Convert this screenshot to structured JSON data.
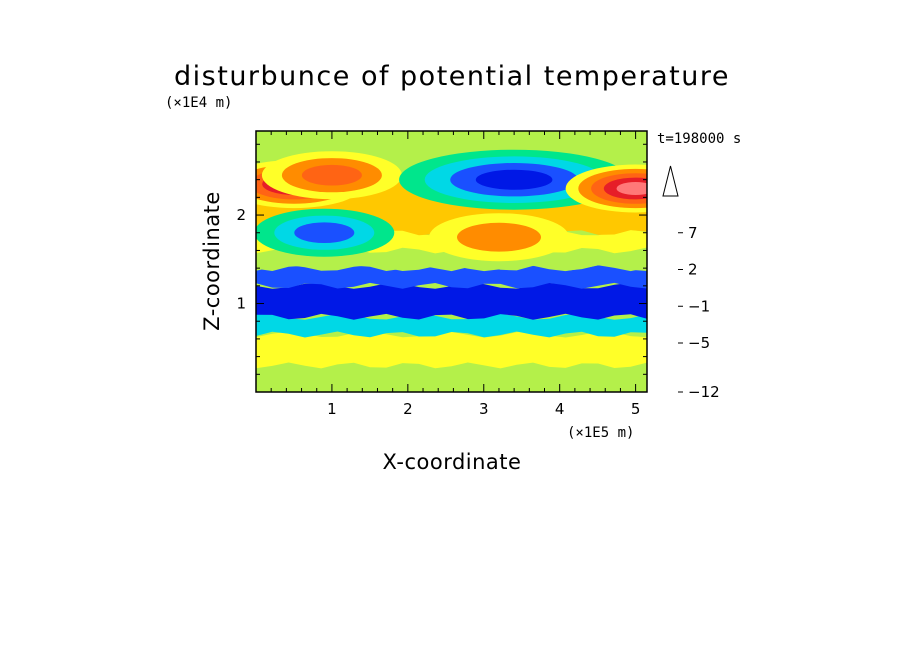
{
  "chart_data": {
    "type": "heatmap",
    "title": "disturbunce of potential temperature",
    "xlabel": "X-coordinate",
    "ylabel": "Z-coordinate",
    "x_unit": "(×1E5 m)",
    "y_unit": "(×1E4 m)",
    "time_label": "t=198000 s",
    "xlim": [
      0,
      5.15
    ],
    "ylim": [
      0,
      2.95
    ],
    "xticks": [
      1,
      2,
      3,
      4,
      5
    ],
    "yticks": [
      1,
      2
    ],
    "colorbar": {
      "levels": [
        -12,
        -11,
        -9,
        -7,
        -5,
        -4,
        -3,
        -1,
        0,
        1,
        2,
        3,
        5,
        7,
        9,
        11
      ],
      "labeled_ticks": [
        "7",
        "2",
        "−1",
        "−5",
        "−12"
      ],
      "colors": [
        "#e600b8",
        "#b3009e",
        "#7a00a8",
        "#1e00a0",
        "#0018e6",
        "#1a50ff",
        "#00d8e6",
        "#00e68c",
        "#b4f04a",
        "#ffff28",
        "#ffc800",
        "#ff8c00",
        "#ff6414",
        "#e61e28",
        "#ff7878",
        "#ffc8c8"
      ],
      "extend": "max"
    },
    "bands": [
      {
        "z": [
          0.0,
          0.3
        ],
        "value": 0.5
      },
      {
        "z": [
          0.3,
          0.65
        ],
        "value": 1.5
      },
      {
        "z": [
          0.65,
          0.85
        ],
        "value": -1.5
      },
      {
        "z": [
          0.85,
          1.2
        ],
        "value": -4.5
      },
      {
        "z": [
          1.2,
          1.4
        ],
        "value": -3.5
      },
      {
        "z": [
          1.4,
          1.6
        ],
        "value": 0.5
      },
      {
        "z": [
          1.6,
          1.8
        ],
        "value": 1.5
      },
      {
        "z": [
          1.8,
          2.4
        ],
        "value": 2.5
      },
      {
        "z": [
          2.4,
          2.95
        ],
        "value": 0.5
      }
    ],
    "features": [
      {
        "x": 0.5,
        "z": 2.35,
        "value": 9
      },
      {
        "x": 1.0,
        "z": 2.45,
        "value": 6
      },
      {
        "x": 3.4,
        "z": 2.4,
        "value": -6
      },
      {
        "x": 3.2,
        "z": 1.75,
        "value": 4
      },
      {
        "x": 5.0,
        "z": 2.3,
        "value": 9
      },
      {
        "x": 0.9,
        "z": 1.8,
        "value": -4
      }
    ]
  }
}
